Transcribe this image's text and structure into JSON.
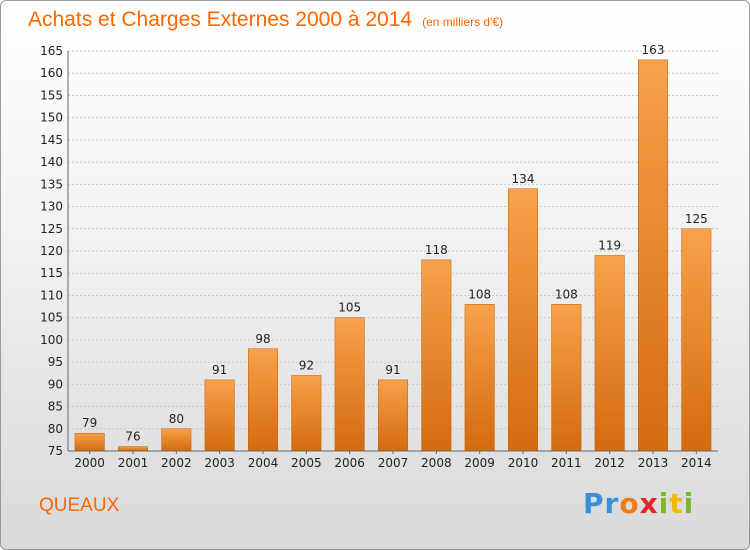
{
  "title": "Achats et Charges Externes 2000 à 2014",
  "unit": "(en milliers d'€)",
  "commune": "QUEAUX",
  "logo": {
    "letters": [
      "P",
      "r",
      "o",
      "x",
      "i",
      "t",
      "i"
    ],
    "colors": [
      "#3a8fd8",
      "#3a8fd8",
      "#f07a1a",
      "#e8232a",
      "#7ab82e",
      "#f5b800",
      "#7ab82e"
    ]
  },
  "chart_data": {
    "type": "bar",
    "categories": [
      "2000",
      "2001",
      "2002",
      "2003",
      "2004",
      "2005",
      "2006",
      "2007",
      "2008",
      "2009",
      "2010",
      "2011",
      "2012",
      "2013",
      "2014"
    ],
    "values": [
      79,
      76,
      80,
      91,
      98,
      92,
      105,
      91,
      118,
      108,
      134,
      108,
      119,
      163,
      125
    ],
    "ylim": [
      75,
      165
    ],
    "yticks": [
      75,
      80,
      85,
      90,
      95,
      100,
      105,
      110,
      115,
      120,
      125,
      130,
      135,
      140,
      145,
      150,
      155,
      160,
      165
    ],
    "grid": true,
    "bar_color_top": "#f7a24a",
    "bar_color_bottom": "#d46a10"
  }
}
